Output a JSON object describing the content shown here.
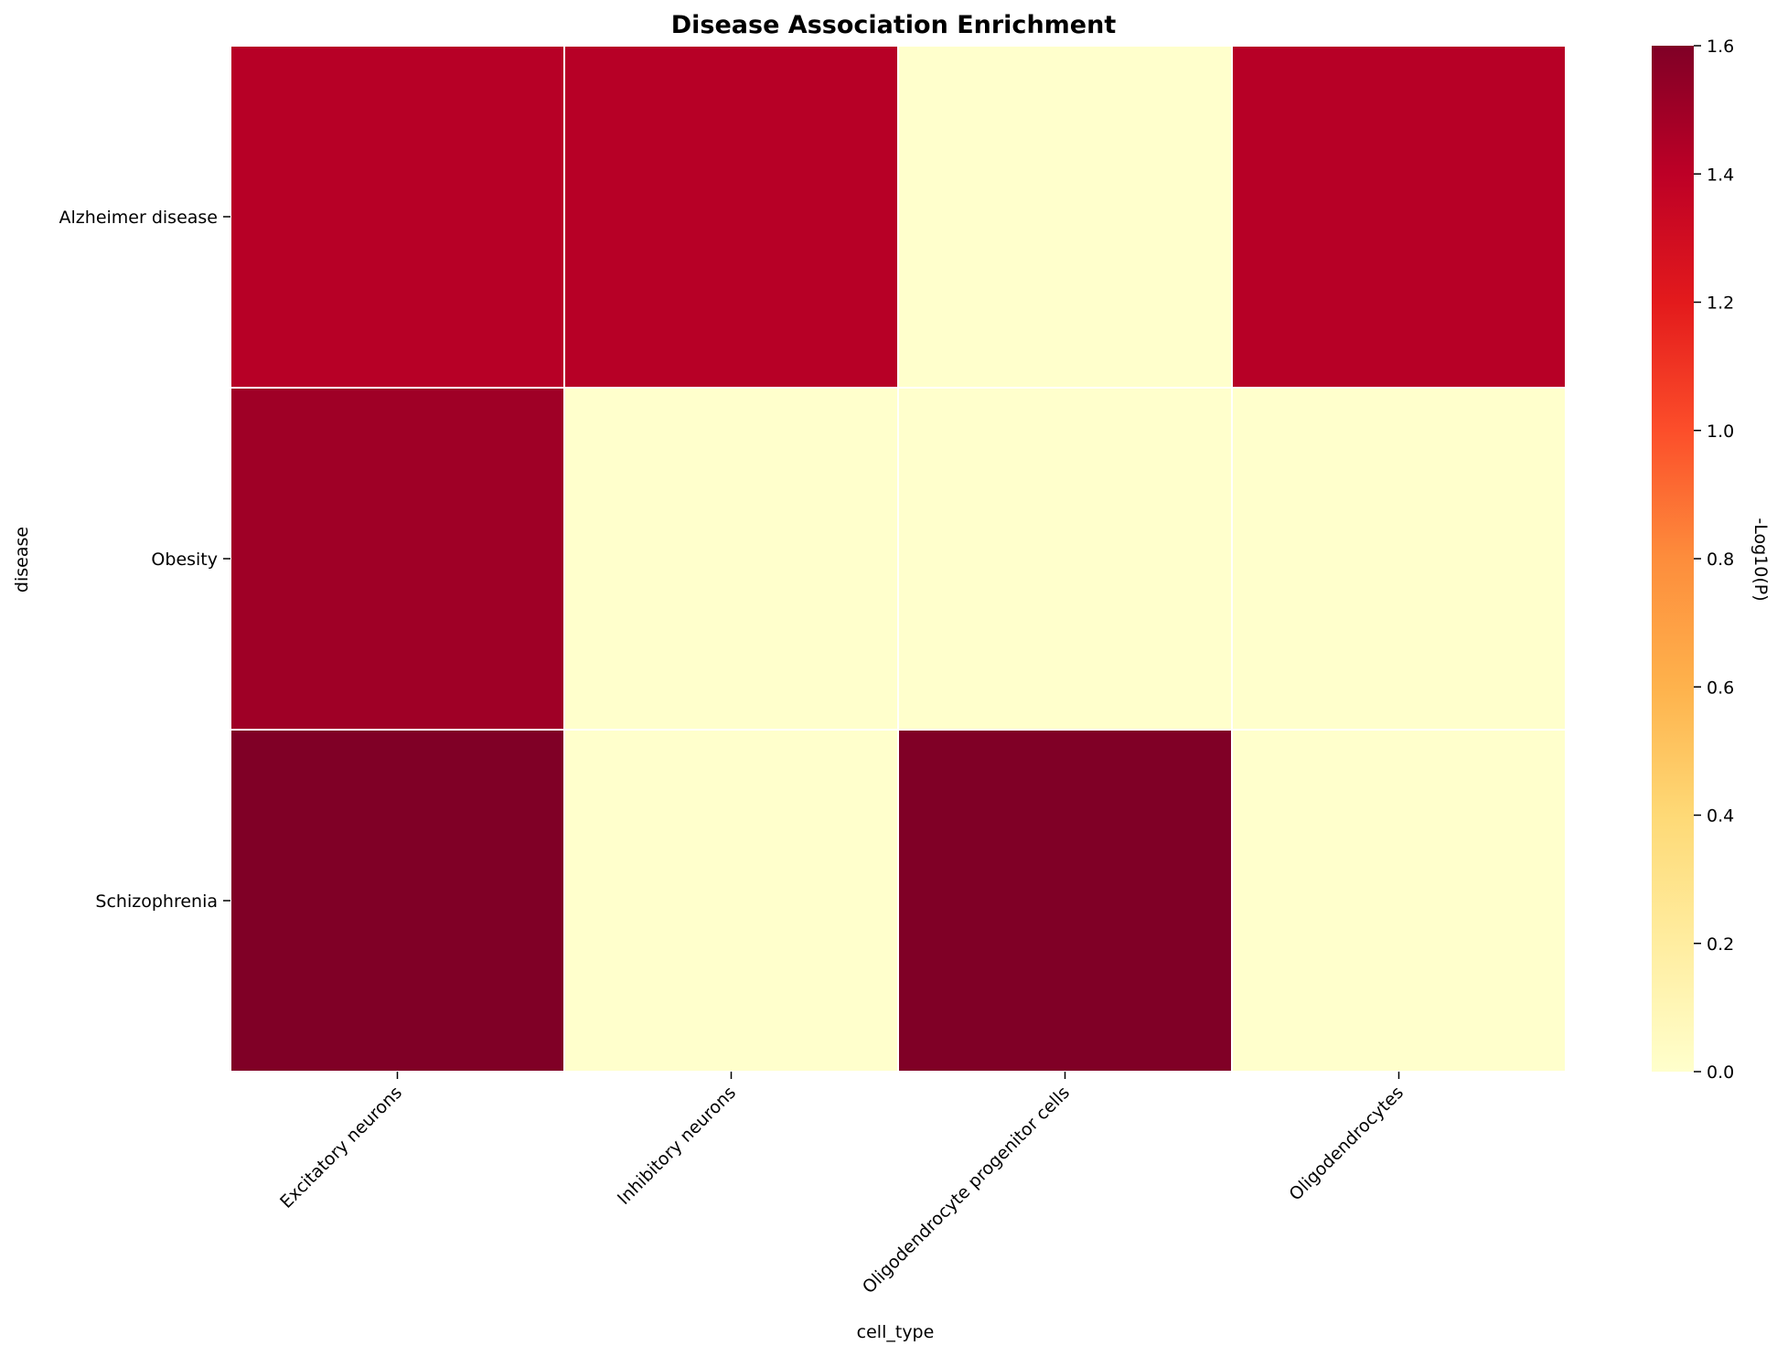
{
  "chart_data": {
    "type": "heatmap",
    "title": "Disease Association Enrichment",
    "xlabel": "cell_type",
    "ylabel": "disease",
    "x_categories": [
      "Excitatory neurons",
      "Inhibitory neurons",
      "Oligodendrocyte progenitor cells",
      "Oligodendrocytes"
    ],
    "y_categories": [
      "Alzheimer disease",
      "Obesity",
      "Schizophrenia"
    ],
    "values": [
      [
        1.42,
        1.42,
        0.0,
        1.42
      ],
      [
        1.5,
        0.0,
        0.0,
        0.0
      ],
      [
        1.6,
        0.0,
        1.6,
        0.0
      ]
    ],
    "colorbar": {
      "label": "-Log10(P)",
      "range": [
        0,
        1.6
      ],
      "ticks": [
        0.0,
        0.2,
        0.4,
        0.6,
        0.8,
        1.0,
        1.2,
        1.4,
        1.6
      ],
      "tick_labels": [
        "0.0",
        "0.2",
        "0.4",
        "0.6",
        "0.8",
        "1.0",
        "1.2",
        "1.4",
        "1.6"
      ],
      "colormap": "YlOrRd",
      "colormap_stops": [
        "#ffffcc",
        "#ffeda0",
        "#fed976",
        "#feb24c",
        "#fd8d3c",
        "#fc4e2a",
        "#e31a1c",
        "#bd0026",
        "#800026"
      ]
    },
    "cell_border_color": "#ffffff",
    "grid": false
  }
}
